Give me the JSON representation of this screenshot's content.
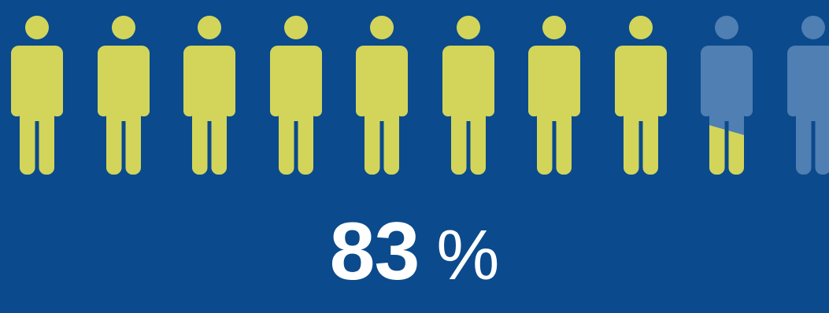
{
  "infographic": {
    "percent_value": "83",
    "percent_sign": "%",
    "level_percent": 83,
    "icon_count": 10
  },
  "colors": {
    "background": "#0b4a8c",
    "filled_icon": "#d2d55a",
    "empty_icon": "#4f7fb3",
    "text": "#ffffff"
  },
  "icons": {
    "unit": "person-icon"
  }
}
